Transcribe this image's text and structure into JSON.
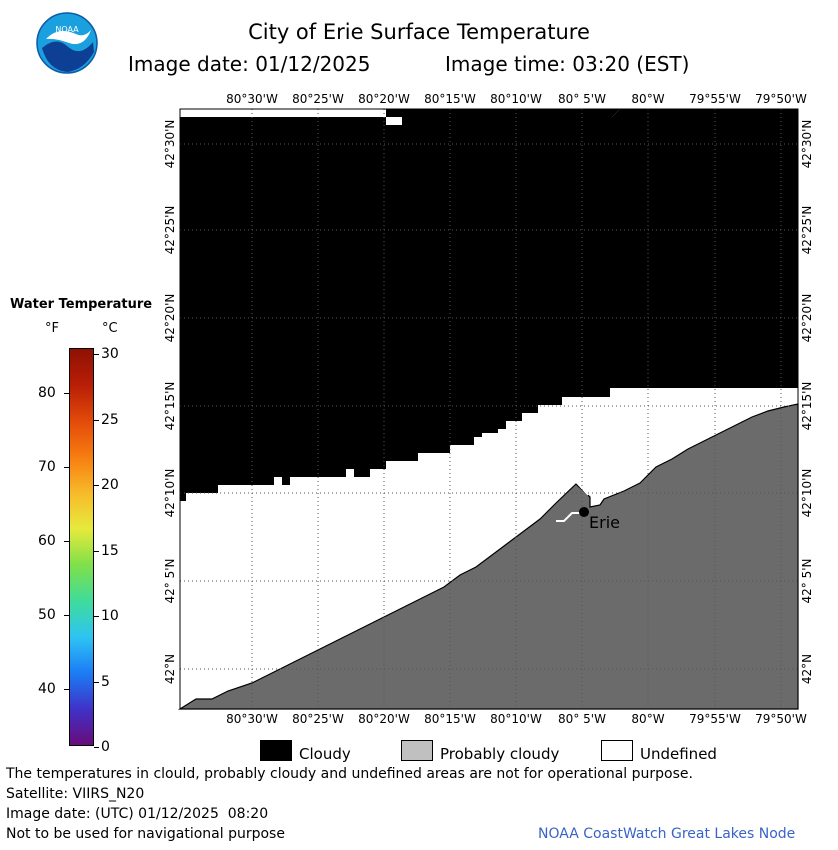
{
  "header": {
    "title": "City of Erie Surface Temperature",
    "image_date": "Image date: 01/12/2025",
    "image_time": "Image time: 03:20 (EST)"
  },
  "logo": {
    "text": "NOAA"
  },
  "legend": {
    "title": "Water Temperature",
    "unit_f": "°F",
    "unit_c": "°C",
    "f_ticks": [
      "80",
      "70",
      "60",
      "50",
      "40"
    ],
    "c_ticks": [
      "30",
      "25",
      "20",
      "15",
      "10",
      "5",
      "0"
    ],
    "colors": [
      "#6a0b7a",
      "#3f32c8",
      "#1c7cf5",
      "#2ec4f2",
      "#3fdc9b",
      "#7fe04a",
      "#e6ea3c",
      "#f7ba2a",
      "#f77d10",
      "#e24a0a",
      "#b81e06",
      "#8f1104"
    ]
  },
  "map": {
    "lon_labels": [
      "80°30'W",
      "80°25'W",
      "80°20'W",
      "80°15'W",
      "80°10'W",
      "80° 5'W",
      "80°W",
      "79°55'W",
      "79°50'W"
    ],
    "lat_labels": [
      "42°30'N",
      "42°25'N",
      "42°20'N",
      "42°15'N",
      "42°10'N",
      "42° 5'N",
      "42°N"
    ],
    "city": "Erie",
    "colors": {
      "cloudy": "#000000",
      "land": "#6b6b6b",
      "undefined": "#ffffff"
    }
  },
  "key": {
    "cloudy": "Cloudy",
    "probably_cloudy": "Probably cloudy",
    "undefined": "Undefined",
    "probably_cloudy_color": "#c0c0c0"
  },
  "footer": {
    "disclaimer": "The temperatures in clould, probably cloudy and undefined areas are not for operational purpose.",
    "satellite": "Satellite: VIIRS_N20",
    "utc_date": "Image date: (UTC) 01/12/2025  08:20",
    "navigation": "Not to be used for navigational purpose",
    "credit": "NOAA CoastWatch Great Lakes Node",
    "credit_color": "#3a63c8"
  }
}
